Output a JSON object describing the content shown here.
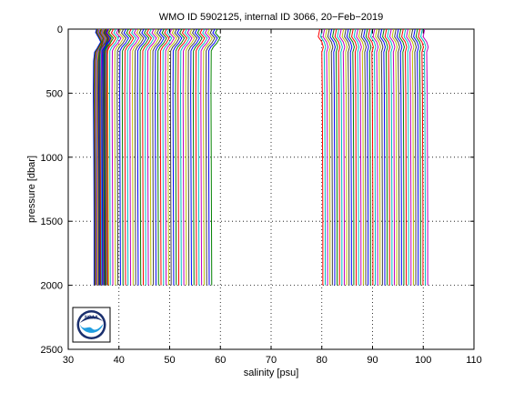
{
  "chart_data": {
    "type": "line",
    "title": "WMO ID 5902125, internal ID 3066, 20−Feb−2019",
    "xlabel": "salinity [psu]",
    "ylabel": "pressure [dbar]",
    "xlim": [
      30,
      110
    ],
    "ylim": [
      0,
      2500
    ],
    "y_reversed": true,
    "xticks": [
      30,
      40,
      50,
      60,
      70,
      80,
      90,
      100,
      110
    ],
    "yticks": [
      0,
      500,
      1000,
      1500,
      2000,
      2500
    ],
    "grid": true,
    "grid_style": "dotted",
    "logo": "noaa-logo",
    "logo_text": "NOAA",
    "series_colors": [
      "#0000ff",
      "#008000",
      "#ff0000",
      "#00bfbf",
      "#bf00bf",
      "#bfbf00",
      "#404040"
    ],
    "profile_groups": [
      {
        "description_id": "group-a",
        "count": 8,
        "offset_start": 0,
        "offset_step": 0.15,
        "profile": [
          [
            0,
            35.6
          ],
          [
            25,
            35.4
          ],
          [
            60,
            35.9
          ],
          [
            100,
            36.4
          ],
          [
            150,
            35.7
          ],
          [
            180,
            35.2
          ],
          [
            250,
            35.0
          ],
          [
            500,
            34.95
          ],
          [
            1000,
            35.05
          ],
          [
            1500,
            35.1
          ],
          [
            2000,
            35.1
          ]
        ]
      },
      {
        "description_id": "group-b",
        "count": 12,
        "offset_start": 0,
        "offset_step": 0.15,
        "profile": [
          [
            0,
            36.5
          ],
          [
            30,
            36.2
          ],
          [
            70,
            36.9
          ],
          [
            120,
            36.6
          ],
          [
            160,
            36.2
          ],
          [
            200,
            36.1
          ],
          [
            500,
            36.15
          ],
          [
            1000,
            36.2
          ],
          [
            1500,
            36.25
          ],
          [
            2000,
            36.3
          ]
        ]
      },
      {
        "description_id": "group-c",
        "count": 45,
        "offset_start": 0,
        "offset_step": 0.5,
        "profile": [
          [
            0,
            37.4
          ],
          [
            30,
            37.0
          ],
          [
            70,
            37.9
          ],
          [
            110,
            37.3
          ],
          [
            140,
            36.6
          ],
          [
            170,
            36.2
          ],
          [
            500,
            36.15
          ],
          [
            1000,
            36.2
          ],
          [
            1500,
            36.25
          ],
          [
            2000,
            36.3
          ]
        ]
      },
      {
        "description_id": "group-d",
        "count": 45,
        "offset_start": 0,
        "offset_step": 0.47,
        "profile": [
          [
            0,
            79.6
          ],
          [
            60,
            79.3
          ],
          [
            100,
            80.0
          ],
          [
            140,
            80.3
          ],
          [
            180,
            80.0
          ],
          [
            500,
            80.1
          ],
          [
            1000,
            80.15
          ],
          [
            1500,
            80.2
          ],
          [
            2000,
            80.2
          ]
        ]
      }
    ]
  }
}
